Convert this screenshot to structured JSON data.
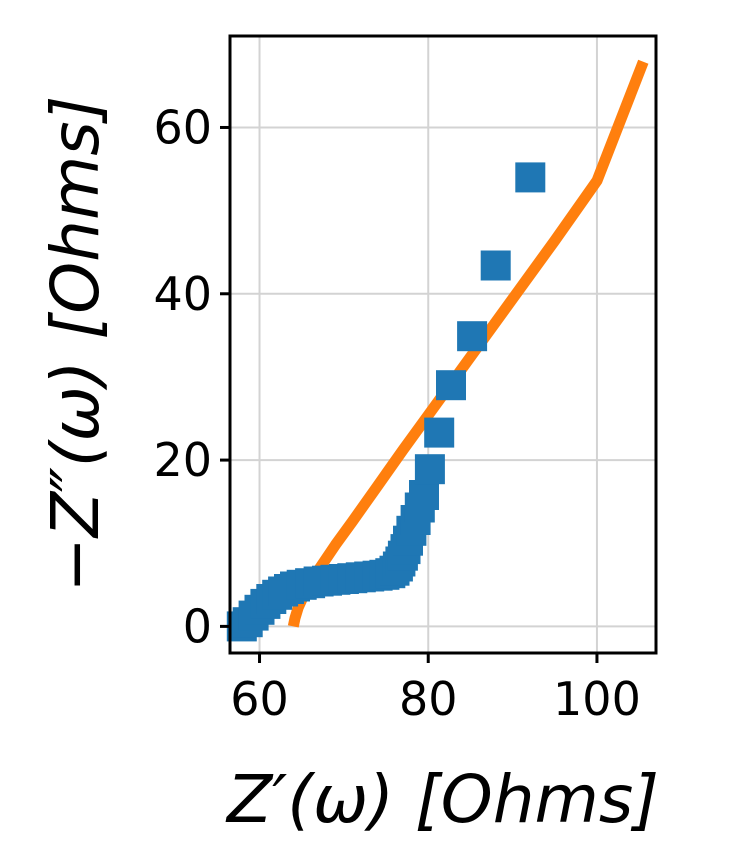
{
  "chart_data": {
    "type": "scatter",
    "xlabel": "Z′(ω) [Ohms]",
    "ylabel": "−Z″(ω) [Ohms]",
    "xlim": [
      56.5,
      107
    ],
    "ylim": [
      -3.2,
      71
    ],
    "xticks": [
      60,
      80,
      100
    ],
    "yticks": [
      0,
      20,
      40,
      60
    ],
    "grid": true,
    "colors": {
      "data": "#1f77b4",
      "fit": "#ff7f0e",
      "grid": "#d3d3d3"
    },
    "series": [
      {
        "kind": "markers",
        "marker": "square",
        "x": [
          57.9,
          58.6,
          59.3,
          60.0,
          60.7,
          61.4,
          62.1,
          62.8,
          63.5,
          64.2,
          65.0,
          66.0,
          67.0,
          68.0,
          69.0,
          70.0,
          71.0,
          72.0,
          73.0,
          74.0,
          74.8,
          75.5,
          76.0,
          76.4,
          76.7,
          77.0,
          77.3,
          77.6,
          78.0,
          78.5,
          79.0,
          79.5,
          80.2,
          81.3,
          82.7,
          85.2,
          88.0,
          92.1
        ],
        "y": [
          0.0,
          0.5,
          1.3,
          2.0,
          2.7,
          3.3,
          3.8,
          4.2,
          4.5,
          4.8,
          5.0,
          5.2,
          5.4,
          5.5,
          5.6,
          5.7,
          5.8,
          5.9,
          6.0,
          6.1,
          6.2,
          6.4,
          6.7,
          7.2,
          7.8,
          8.5,
          9.3,
          10.3,
          11.5,
          12.8,
          14.3,
          15.8,
          18.9,
          23.3,
          29.0,
          34.9,
          43.4,
          54.0
        ]
      },
      {
        "kind": "line",
        "x": [
          64.0,
          64.2,
          64.6,
          65.5,
          67.0,
          69.0,
          71.0,
          74.0,
          77.0,
          80.0,
          83.0,
          86.0,
          90.0,
          95.0,
          100.0,
          105.5
        ],
        "y": [
          0.0,
          1.0,
          2.3,
          4.3,
          6.8,
          9.8,
          12.6,
          16.9,
          21.2,
          25.4,
          29.6,
          33.8,
          39.4,
          46.4,
          53.6,
          67.9
        ]
      }
    ]
  }
}
